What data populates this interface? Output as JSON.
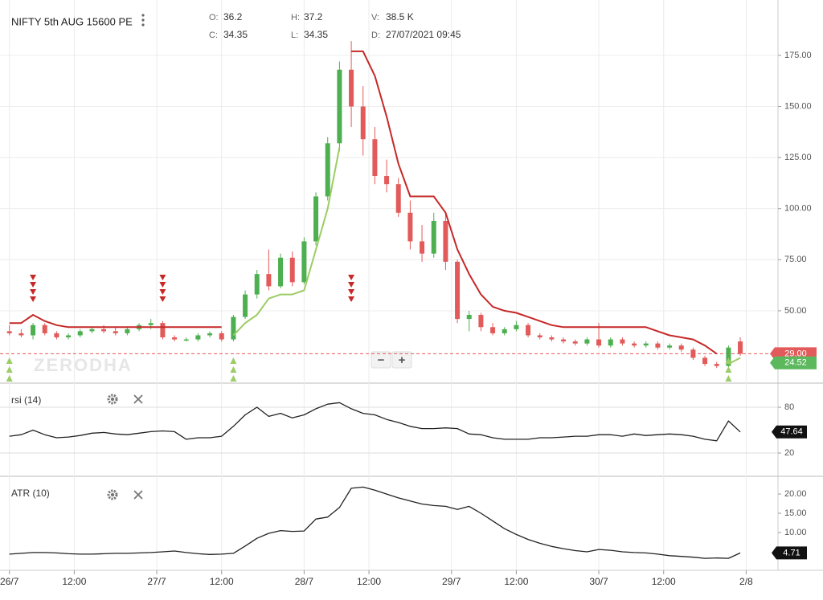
{
  "chart_data": [
    {
      "type": "candlestick",
      "title": "NIFTY 5th AUG 15600 PE",
      "ohlc_info": [
        [
          "O:",
          "36.2"
        ],
        [
          "H:",
          "37.2"
        ],
        [
          "V:",
          "38.5 K"
        ],
        [
          "C:",
          "34.35"
        ],
        [
          "L:",
          "34.35"
        ],
        [
          "D:",
          "27/07/2021 09:45"
        ]
      ],
      "watermark": "ZERODHA",
      "zoom_buttons": [
        "−",
        "+"
      ],
      "x": [
        0,
        2,
        4,
        6,
        8,
        10,
        12,
        14,
        16,
        18,
        20,
        22,
        24,
        26,
        28,
        30,
        32,
        34,
        36,
        38,
        40,
        42,
        44,
        46,
        48,
        50,
        52,
        54,
        56,
        58,
        60,
        62,
        64,
        66,
        68,
        70,
        72,
        74,
        76,
        78,
        80,
        82,
        84,
        86,
        88,
        90,
        92,
        94,
        96,
        98,
        100,
        102,
        104,
        106,
        108,
        110,
        112,
        114,
        116,
        118,
        120,
        122,
        124
      ],
      "open": [
        40,
        39,
        38,
        43,
        39,
        37,
        38,
        40,
        41,
        40,
        39,
        41,
        43,
        44,
        37,
        36,
        36,
        38,
        39,
        36,
        47,
        58,
        68,
        62,
        76,
        64,
        84,
        106,
        132,
        168,
        150,
        134,
        116,
        112,
        98,
        84,
        78,
        94,
        74,
        46,
        48,
        42,
        39,
        41,
        43,
        38,
        37,
        36,
        35,
        34,
        36,
        33,
        36,
        34,
        33,
        34,
        32,
        33,
        31,
        27,
        24,
        23,
        35
      ],
      "high": [
        43,
        41,
        44,
        44,
        40,
        39,
        41,
        42,
        43,
        42,
        42,
        44,
        46,
        45,
        38,
        37,
        39,
        40,
        40,
        48,
        60,
        70,
        80,
        78,
        79,
        86,
        108,
        135,
        172,
        182,
        160,
        140,
        124,
        115,
        104,
        92,
        98,
        98,
        75,
        50,
        49,
        44,
        42,
        45,
        44,
        39,
        38,
        37,
        36,
        37,
        44,
        37,
        37,
        35,
        35,
        35,
        34,
        34,
        32,
        28,
        25,
        33,
        37
      ],
      "low": [
        38,
        37,
        36,
        38,
        36,
        36,
        37,
        39,
        39,
        38,
        38,
        40,
        41,
        36,
        35,
        35,
        35,
        37,
        35,
        35,
        46,
        56,
        60,
        61,
        62,
        63,
        82,
        104,
        128,
        140,
        126,
        112,
        108,
        96,
        80,
        74,
        76,
        70,
        44,
        40,
        40,
        38,
        38,
        40,
        37,
        36,
        35,
        34,
        33,
        33,
        32,
        32,
        33,
        32,
        32,
        31,
        31,
        30,
        26,
        23,
        22,
        22,
        28
      ],
      "close": [
        39,
        38,
        43,
        39,
        37,
        38,
        40,
        41,
        40,
        39,
        41,
        43,
        44,
        37,
        36,
        36,
        38,
        39,
        36,
        47,
        58,
        68,
        62,
        76,
        64,
        84,
        106,
        132,
        168,
        150,
        134,
        116,
        112,
        98,
        84,
        78,
        94,
        74,
        46,
        48,
        42,
        39,
        41,
        43,
        38,
        37,
        36,
        35,
        34,
        36,
        33,
        36,
        34,
        33,
        34,
        32,
        33,
        31,
        27,
        24,
        23,
        32,
        29
      ],
      "up_color": "#4caf50",
      "down_color": "#e25a5a",
      "supertrend": [
        {
          "color": "#c62828",
          "values": [
            44,
            44,
            48,
            45,
            43,
            42,
            42,
            42,
            42,
            42,
            42,
            42,
            42,
            42,
            42,
            42,
            42,
            42,
            42,
            null,
            null,
            null,
            null,
            null,
            null,
            null,
            null,
            null,
            null,
            177,
            177,
            165,
            145,
            122,
            106,
            106,
            106,
            98,
            80,
            68,
            58,
            52,
            50,
            49,
            47,
            45,
            43,
            42,
            42,
            42,
            42,
            42,
            42,
            42,
            42,
            40,
            38,
            37,
            36,
            33,
            29,
            null,
            null
          ]
        },
        {
          "color": "#9ccc65",
          "values": [
            null,
            null,
            null,
            null,
            null,
            null,
            null,
            null,
            null,
            null,
            null,
            null,
            null,
            null,
            null,
            null,
            null,
            null,
            null,
            38,
            44,
            48,
            56,
            58,
            58,
            60,
            80,
            100,
            130,
            null,
            null,
            null,
            null,
            null,
            null,
            null,
            null,
            null,
            null,
            null,
            null,
            null,
            null,
            null,
            null,
            null,
            null,
            null,
            null,
            null,
            null,
            null,
            null,
            null,
            null,
            null,
            null,
            null,
            null,
            null,
            null,
            24,
            27
          ]
        }
      ],
      "sell_signals_x": [
        4,
        26,
        58
      ],
      "buy_signals_x": [
        0,
        38,
        122
      ],
      "price_markers": [
        {
          "value": 29,
          "label": "29.00",
          "color": "#e25a5a"
        },
        {
          "value": 24.52,
          "color": "#5cb85c"
        }
      ],
      "xlim": [
        -1.6,
        130.4
      ],
      "xticks": [
        {
          "value": 0,
          "label": "26/7"
        },
        {
          "value": 11,
          "label": "12:00"
        },
        {
          "value": 25,
          "label": "27/7"
        },
        {
          "value": 36,
          "label": "12:00"
        },
        {
          "value": 50,
          "label": "28/7"
        },
        {
          "value": 61,
          "label": "12:00"
        },
        {
          "value": 75,
          "label": "29/7"
        },
        {
          "value": 86,
          "label": "12:00"
        },
        {
          "value": 100,
          "label": "30/7"
        },
        {
          "value": 111,
          "label": "12:00"
        },
        {
          "value": 125,
          "label": "2/8"
        }
      ],
      "ylim": [
        14.6,
        202.1
      ],
      "yticks": [
        {
          "value": 50,
          "label": "50.00"
        },
        {
          "value": 75,
          "label": "75.00"
        },
        {
          "value": 100,
          "label": "100.00"
        },
        {
          "value": 125,
          "label": "125.00"
        },
        {
          "value": 150,
          "label": "150.00"
        },
        {
          "value": 175,
          "label": "175.00"
        }
      ],
      "grid": true
    },
    {
      "type": "line",
      "title": "rsi (14)",
      "color": "#222222",
      "values": [
        42,
        44,
        50,
        44,
        40,
        41,
        43,
        46,
        47,
        45,
        44,
        46,
        48,
        49,
        48,
        38,
        40,
        40,
        42,
        55,
        70,
        80,
        68,
        72,
        66,
        70,
        78,
        84,
        86,
        78,
        72,
        70,
        64,
        60,
        55,
        52,
        52,
        53,
        52,
        45,
        44,
        40,
        38,
        38,
        38,
        40,
        40,
        41,
        42,
        42,
        44,
        44,
        42,
        45,
        43,
        44,
        45,
        44,
        42,
        38,
        36,
        62,
        47.64
      ],
      "ylim": [
        -10.5,
        111.6
      ],
      "yticks": [
        20,
        80
      ]
    },
    {
      "type": "line",
      "title": "ATR (10)",
      "color": "#222222",
      "values": [
        4.4,
        4.6,
        4.8,
        4.8,
        4.7,
        4.5,
        4.4,
        4.4,
        4.5,
        4.6,
        4.6,
        4.7,
        4.8,
        5.0,
        5.2,
        4.8,
        4.5,
        4.3,
        4.4,
        4.6,
        6.5,
        8.5,
        9.8,
        10.5,
        10.3,
        10.4,
        13.5,
        14.0,
        16.5,
        21.5,
        21.8,
        21.0,
        20.0,
        19.0,
        18.2,
        17.4,
        17.0,
        16.8,
        16.0,
        16.8,
        15.0,
        13.0,
        11.0,
        9.5,
        8.2,
        7.2,
        6.4,
        5.8,
        5.3,
        5.0,
        5.6,
        5.4,
        5.0,
        4.8,
        4.7,
        4.4,
        4.0,
        3.8,
        3.6,
        3.3,
        3.4,
        3.3,
        4.71
      ],
      "ylim": [
        0.2,
        24.6
      ],
      "yticks": [
        {
          "value": 10,
          "label": "10.00"
        },
        {
          "value": 15,
          "label": "15.00"
        },
        {
          "value": 20,
          "label": "20.00"
        }
      ]
    }
  ]
}
